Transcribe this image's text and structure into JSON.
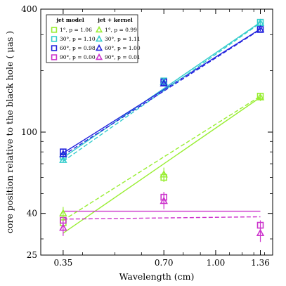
{
  "chart_data": {
    "type": "scatter",
    "x_scale": "log",
    "y_scale": "log",
    "xlabel": "Wavelength (cm)",
    "ylabel": "core position relative to the black hole ( μas )",
    "xlim": [
      0.3,
      1.48
    ],
    "ylim": [
      25,
      400
    ],
    "xticks": [
      0.35,
      0.7,
      1.0,
      1.36
    ],
    "xtick_labels": [
      "0.35",
      "0.70",
      "1.00",
      "1.36"
    ],
    "yticks": [
      25,
      40,
      100,
      400
    ],
    "ytick_labels": [
      "25",
      "40",
      "100",
      "400"
    ],
    "legend": {
      "placement": "top-left",
      "columns": [
        {
          "title": "jet model",
          "marker": "square",
          "entries": [
            {
              "label": "1°, p = 1.06",
              "color": "#99ee33"
            },
            {
              "label": "30°, p = 1.10",
              "color": "#33cccc"
            },
            {
              "label": "60°, p = 0.98",
              "color": "#2222dd"
            },
            {
              "label": "90°, p = 0.00",
              "color": "#cc33cc"
            }
          ]
        },
        {
          "title": "jet + kernel",
          "marker": "triangle",
          "entries": [
            {
              "label": "1°, p = 0.99",
              "color": "#99ee33"
            },
            {
              "label": "30°, p = 1.11",
              "color": "#33cccc"
            },
            {
              "label": "60°, p = 1.00",
              "color": "#2222dd"
            },
            {
              "label": "90°, p = 0.01",
              "color": "#cc33cc"
            }
          ]
        }
      ]
    },
    "series": [
      {
        "model": "jet model",
        "marker": "square",
        "color": "#99ee33",
        "x": [
          0.35,
          0.7,
          1.36
        ],
        "y": [
          36,
          60,
          150
        ],
        "yerr": [
          1.5,
          2.5,
          4
        ],
        "fit": {
          "x": [
            0.35,
            1.36
          ],
          "y": [
            32,
            148
          ],
          "style": "solid"
        }
      },
      {
        "model": "jet model",
        "marker": "square",
        "color": "#33cccc",
        "x": [
          0.35,
          0.7,
          1.36
        ],
        "y": [
          76,
          178,
          345
        ],
        "yerr": [
          2,
          3,
          5
        ],
        "fit": {
          "x": [
            0.35,
            1.36
          ],
          "y": [
            75,
            345
          ],
          "style": "solid"
        }
      },
      {
        "model": "jet model",
        "marker": "square",
        "color": "#2222dd",
        "x": [
          0.35,
          0.7,
          1.36
        ],
        "y": [
          80,
          176,
          318
        ],
        "yerr": [
          2.5,
          3,
          5
        ],
        "fit": {
          "x": [
            0.35,
            1.36
          ],
          "y": [
            79,
            320
          ],
          "style": "solid"
        }
      },
      {
        "model": "jet model",
        "marker": "square",
        "color": "#cc33cc",
        "x": [
          0.35,
          0.7,
          1.36
        ],
        "y": [
          37,
          48,
          35
        ],
        "yerr": [
          2,
          3,
          2
        ],
        "fit": {
          "x": [
            0.35,
            1.36
          ],
          "y": [
            41,
            41
          ],
          "style": "solid"
        }
      },
      {
        "model": "jet + kernel",
        "marker": "triangle",
        "color": "#99ee33",
        "x": [
          0.35,
          0.7,
          1.36
        ],
        "y": [
          40,
          62,
          148
        ],
        "yerr": [
          3,
          5,
          6
        ],
        "fit": {
          "x": [
            0.35,
            1.36
          ],
          "y": [
            37,
            150
          ],
          "style": "dashed"
        }
      },
      {
        "model": "jet + kernel",
        "marker": "triangle",
        "color": "#33cccc",
        "x": [
          0.35,
          0.7,
          1.36
        ],
        "y": [
          73,
          176,
          342
        ],
        "yerr": [
          2,
          3,
          5
        ],
        "fit": {
          "x": [
            0.35,
            1.36
          ],
          "y": [
            72,
            342
          ],
          "style": "dashed"
        }
      },
      {
        "model": "jet + kernel",
        "marker": "triangle",
        "color": "#2222dd",
        "x": [
          0.35,
          0.7,
          1.36
        ],
        "y": [
          78,
          173,
          318
        ],
        "yerr": [
          2,
          3,
          5
        ],
        "fit": {
          "x": [
            0.35,
            1.36
          ],
          "y": [
            77,
            318
          ],
          "style": "dashed"
        }
      },
      {
        "model": "jet + kernel",
        "marker": "triangle",
        "color": "#cc33cc",
        "x": [
          0.35,
          0.7,
          1.36
        ],
        "y": [
          34,
          46,
          32
        ],
        "yerr": [
          3,
          4,
          3
        ],
        "fit": {
          "x": [
            0.35,
            1.36
          ],
          "y": [
            37.5,
            38.5
          ],
          "style": "dashed"
        }
      }
    ]
  }
}
